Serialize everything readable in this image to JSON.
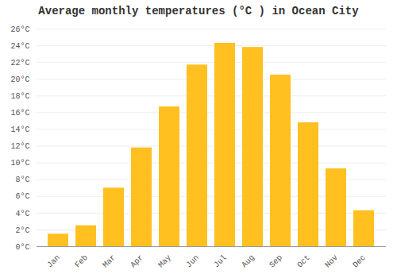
{
  "chart_data": {
    "type": "bar",
    "title": "Average monthly temperatures (°C ) in Ocean City",
    "categories": [
      "Jan",
      "Feb",
      "Mar",
      "Apr",
      "May",
      "Jun",
      "Jul",
      "Aug",
      "Sep",
      "Oct",
      "Nov",
      "Dec"
    ],
    "values": [
      1.5,
      2.5,
      7.0,
      11.8,
      16.7,
      21.7,
      24.3,
      23.8,
      20.5,
      14.8,
      9.3,
      4.3
    ],
    "color": "#FFC020",
    "ylim": [
      0,
      26
    ],
    "yticks": [
      {
        "value": 0,
        "label": "0°C"
      },
      {
        "value": 2,
        "label": "2°C"
      },
      {
        "value": 4,
        "label": "4°C"
      },
      {
        "value": 6,
        "label": "6°C"
      },
      {
        "value": 8,
        "label": "8°C"
      },
      {
        "value": 10,
        "label": "10°C"
      },
      {
        "value": 12,
        "label": "12°C"
      },
      {
        "value": 14,
        "label": "14°C"
      },
      {
        "value": 16,
        "label": "16°C"
      },
      {
        "value": 18,
        "label": "18°C"
      },
      {
        "value": 20,
        "label": "20°C"
      },
      {
        "value": 22,
        "label": "22°C"
      },
      {
        "value": 24,
        "label": "24°C"
      },
      {
        "value": 26,
        "label": "26°C"
      }
    ],
    "grid": true
  }
}
